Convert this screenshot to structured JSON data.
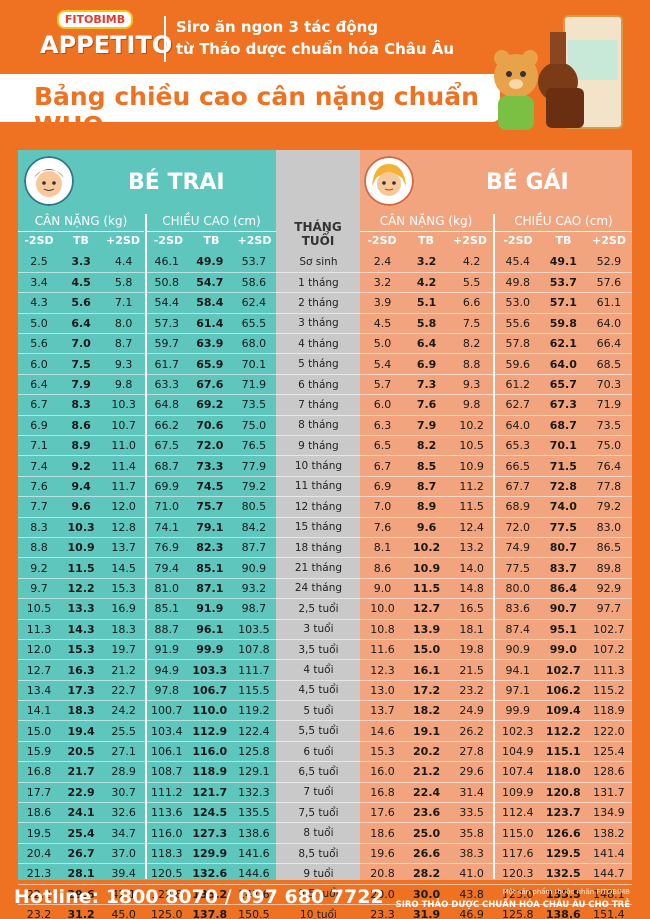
{
  "brand": {
    "maker": "FITOBIMB",
    "product": "APPETITO",
    "tagline1": "Siro ăn ngon 3 tác động",
    "tagline2": "từ Thảo dược chuẩn hóa Châu Âu"
  },
  "banner": "Bảng chiều cao cân nặng chuẩn WHO",
  "boys": {
    "title": "BÉ TRAI",
    "weight": "CÂN NẶNG (kg)",
    "height": "CHIỀU CAO (cm)"
  },
  "girls": {
    "title": "BÉ GÁI",
    "weight": "CÂN NẶNG (kg)",
    "height": "CHIỀU CAO (cm)"
  },
  "month_label": "THÁNG TUỔI",
  "sub": {
    "m2": "-2SD",
    "tb": "TB",
    "p2": "+2SD"
  },
  "rows": [
    [
      "2.5",
      "3.3",
      "4.4",
      "46.1",
      "49.9",
      "53.7",
      "Sơ sinh",
      "2.4",
      "3.2",
      "4.2",
      "45.4",
      "49.1",
      "52.9"
    ],
    [
      "3.4",
      "4.5",
      "5.8",
      "50.8",
      "54.7",
      "58.6",
      "1 tháng",
      "3.2",
      "4.2",
      "5.5",
      "49.8",
      "53.7",
      "57.6"
    ],
    [
      "4.3",
      "5.6",
      "7.1",
      "54.4",
      "58.4",
      "62.4",
      "2 tháng",
      "3.9",
      "5.1",
      "6.6",
      "53.0",
      "57.1",
      "61.1"
    ],
    [
      "5.0",
      "6.4",
      "8.0",
      "57.3",
      "61.4",
      "65.5",
      "3 tháng",
      "4.5",
      "5.8",
      "7.5",
      "55.6",
      "59.8",
      "64.0"
    ],
    [
      "5.6",
      "7.0",
      "8.7",
      "59.7",
      "63.9",
      "68.0",
      "4 tháng",
      "5.0",
      "6.4",
      "8.2",
      "57.8",
      "62.1",
      "66.4"
    ],
    [
      "6.0",
      "7.5",
      "9.3",
      "61.7",
      "65.9",
      "70.1",
      "5 tháng",
      "5.4",
      "6.9",
      "8.8",
      "59.6",
      "64.0",
      "68.5"
    ],
    [
      "6.4",
      "7.9",
      "9.8",
      "63.3",
      "67.6",
      "71.9",
      "6 tháng",
      "5.7",
      "7.3",
      "9.3",
      "61.2",
      "65.7",
      "70.3"
    ],
    [
      "6.7",
      "8.3",
      "10.3",
      "64.8",
      "69.2",
      "73.5",
      "7 tháng",
      "6.0",
      "7.6",
      "9.8",
      "62.7",
      "67.3",
      "71.9"
    ],
    [
      "6.9",
      "8.6",
      "10.7",
      "66.2",
      "70.6",
      "75.0",
      "8 tháng",
      "6.3",
      "7.9",
      "10.2",
      "64.0",
      "68.7",
      "73.5"
    ],
    [
      "7.1",
      "8.9",
      "11.0",
      "67.5",
      "72.0",
      "76.5",
      "9 tháng",
      "6.5",
      "8.2",
      "10.5",
      "65.3",
      "70.1",
      "75.0"
    ],
    [
      "7.4",
      "9.2",
      "11.4",
      "68.7",
      "73.3",
      "77.9",
      "10 tháng",
      "6.7",
      "8.5",
      "10.9",
      "66.5",
      "71.5",
      "76.4"
    ],
    [
      "7.6",
      "9.4",
      "11.7",
      "69.9",
      "74.5",
      "79.2",
      "11 tháng",
      "6.9",
      "8.7",
      "11.2",
      "67.7",
      "72.8",
      "77.8"
    ],
    [
      "7.7",
      "9.6",
      "12.0",
      "71.0",
      "75.7",
      "80.5",
      "12 tháng",
      "7.0",
      "8.9",
      "11.5",
      "68.9",
      "74.0",
      "79.2"
    ],
    [
      "8.3",
      "10.3",
      "12.8",
      "74.1",
      "79.1",
      "84.2",
      "15 tháng",
      "7.6",
      "9.6",
      "12.4",
      "72.0",
      "77.5",
      "83.0"
    ],
    [
      "8.8",
      "10.9",
      "13.7",
      "76.9",
      "82.3",
      "87.7",
      "18 tháng",
      "8.1",
      "10.2",
      "13.2",
      "74.9",
      "80.7",
      "86.5"
    ],
    [
      "9.2",
      "11.5",
      "14.5",
      "79.4",
      "85.1",
      "90.9",
      "21 tháng",
      "8.6",
      "10.9",
      "14.0",
      "77.5",
      "83.7",
      "89.8"
    ],
    [
      "9.7",
      "12.2",
      "15.3",
      "81.0",
      "87.1",
      "93.2",
      "24 tháng",
      "9.0",
      "11.5",
      "14.8",
      "80.0",
      "86.4",
      "92.9"
    ],
    [
      "10.5",
      "13.3",
      "16.9",
      "85.1",
      "91.9",
      "98.7",
      "2,5 tuổi",
      "10.0",
      "12.7",
      "16.5",
      "83.6",
      "90.7",
      "97.7"
    ],
    [
      "11.3",
      "14.3",
      "18.3",
      "88.7",
      "96.1",
      "103.5",
      "3 tuổi",
      "10.8",
      "13.9",
      "18.1",
      "87.4",
      "95.1",
      "102.7"
    ],
    [
      "12.0",
      "15.3",
      "19.7",
      "91.9",
      "99.9",
      "107.8",
      "3,5 tuổi",
      "11.6",
      "15.0",
      "19.8",
      "90.9",
      "99.0",
      "107.2"
    ],
    [
      "12.7",
      "16.3",
      "21.2",
      "94.9",
      "103.3",
      "111.7",
      "4 tuổi",
      "12.3",
      "16.1",
      "21.5",
      "94.1",
      "102.7",
      "111.3"
    ],
    [
      "13.4",
      "17.3",
      "22.7",
      "97.8",
      "106.7",
      "115.5",
      "4,5 tuổi",
      "13.0",
      "17.2",
      "23.2",
      "97.1",
      "106.2",
      "115.2"
    ],
    [
      "14.1",
      "18.3",
      "24.2",
      "100.7",
      "110.0",
      "119.2",
      "5 tuổi",
      "13.7",
      "18.2",
      "24.9",
      "99.9",
      "109.4",
      "118.9"
    ],
    [
      "15.0",
      "19.4",
      "25.5",
      "103.4",
      "112.9",
      "122.4",
      "5,5 tuổi",
      "14.6",
      "19.1",
      "26.2",
      "102.3",
      "112.2",
      "122.0"
    ],
    [
      "15.9",
      "20.5",
      "27.1",
      "106.1",
      "116.0",
      "125.8",
      "6 tuổi",
      "15.3",
      "20.2",
      "27.8",
      "104.9",
      "115.1",
      "125.4"
    ],
    [
      "16.8",
      "21.7",
      "28.9",
      "108.7",
      "118.9",
      "129.1",
      "6,5 tuổi",
      "16.0",
      "21.2",
      "29.6",
      "107.4",
      "118.0",
      "128.6"
    ],
    [
      "17.7",
      "22.9",
      "30.7",
      "111.2",
      "121.7",
      "132.3",
      "7 tuổi",
      "16.8",
      "22.4",
      "31.4",
      "109.9",
      "120.8",
      "131.7"
    ],
    [
      "18.6",
      "24.1",
      "32.6",
      "113.6",
      "124.5",
      "135.5",
      "7,5 tuổi",
      "17.6",
      "23.6",
      "33.5",
      "112.4",
      "123.7",
      "134.9"
    ],
    [
      "19.5",
      "25.4",
      "34.7",
      "116.0",
      "127.3",
      "138.6",
      "8 tuổi",
      "18.6",
      "25.0",
      "35.8",
      "115.0",
      "126.6",
      "138.2"
    ],
    [
      "20.4",
      "26.7",
      "37.0",
      "118.3",
      "129.9",
      "141.6",
      "8,5 tuổi",
      "19.6",
      "26.6",
      "38.3",
      "117.6",
      "129.5",
      "141.4"
    ],
    [
      "21.3",
      "28.1",
      "39.4",
      "120.5",
      "132.6",
      "144.6",
      "9 tuổi",
      "20.8",
      "28.2",
      "41.0",
      "120.3",
      "132.5",
      "144.7"
    ],
    [
      "22.2",
      "29.6",
      "42.1",
      "122.8",
      "135.2",
      "147.6",
      "9,5 tuổi",
      "20.0",
      "30.0",
      "43.8",
      "123.0",
      "135.5",
      "148.1"
    ],
    [
      "23.2",
      "31.2",
      "45.0",
      "125.0",
      "137.8",
      "150.5",
      "10 tuổi",
      "23.3",
      "31.9",
      "46.9",
      "125.8",
      "138.6",
      "151.4"
    ]
  ],
  "footer": {
    "hotline": "Hotline: 1800 8070 / 097 680 7722",
    "line1": "Một sản phẩm thuộc nhãn FITOBIMB",
    "line2": "SIRO THẢO DƯỢC CHUẨN HÓA CHÂU ÂU CHO TRẺ"
  }
}
